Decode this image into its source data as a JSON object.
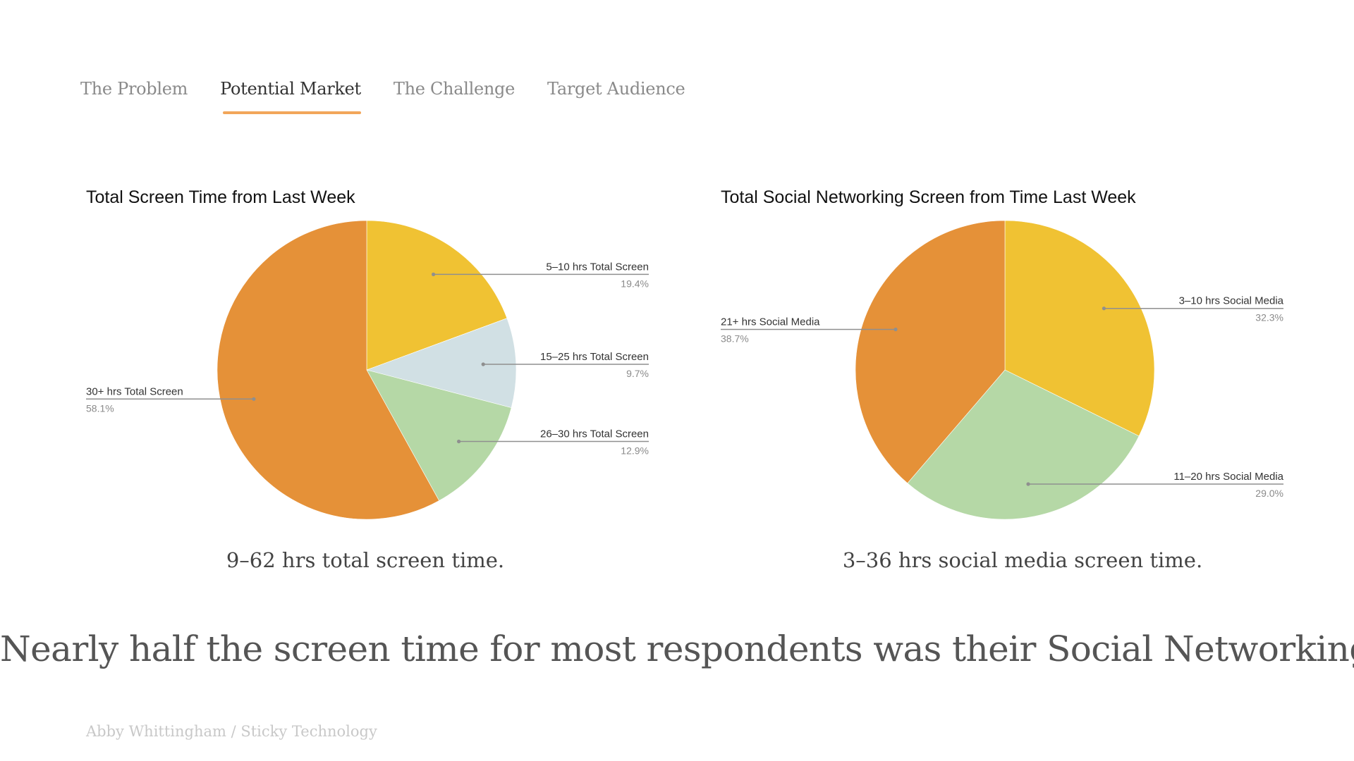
{
  "nav": {
    "tabs": [
      {
        "label": "The Problem",
        "active": false
      },
      {
        "label": "Potential Market",
        "active": true
      },
      {
        "label": "The Challenge",
        "active": false
      },
      {
        "label": "Target Audience",
        "active": false
      }
    ],
    "accent_color": "#f2a65a"
  },
  "chart_data": [
    {
      "type": "pie",
      "title": "Total Screen Time from Last Week",
      "slices": [
        {
          "label": "5–10 hrs Total Screen",
          "value": 19.4,
          "display": "19.4%",
          "color": "#f0c233"
        },
        {
          "label": "15–25 hrs Total Screen",
          "value": 9.7,
          "display": "9.7%",
          "color": "#d1e0e4"
        },
        {
          "label": "26–30 hrs Total Screen",
          "value": 12.9,
          "display": "12.9%",
          "color": "#b5d8a6"
        },
        {
          "label": "30+ hrs Total Screen",
          "value": 58.1,
          "display": "58.1%",
          "color": "#e59138"
        }
      ]
    },
    {
      "type": "pie",
      "title": "Total Social Networking Screen from Time Last Week",
      "slices": [
        {
          "label": "3–10 hrs Social Media",
          "value": 32.3,
          "display": "32.3%",
          "color": "#f0c233"
        },
        {
          "label": "11–20 hrs Social Media",
          "value": 29.0,
          "display": "29.0%",
          "color": "#b5d8a6"
        },
        {
          "label": "21+ hrs Social Media",
          "value": 38.7,
          "display": "38.7%",
          "color": "#e59138"
        }
      ]
    }
  ],
  "captions": {
    "left": "9–62 hrs total screen time.",
    "right": "3–36 hrs social media screen time."
  },
  "headline": "Nearly half the screen time for most respondents was their Social Networking.",
  "footer": "Abby Whittingham / Sticky Technology"
}
